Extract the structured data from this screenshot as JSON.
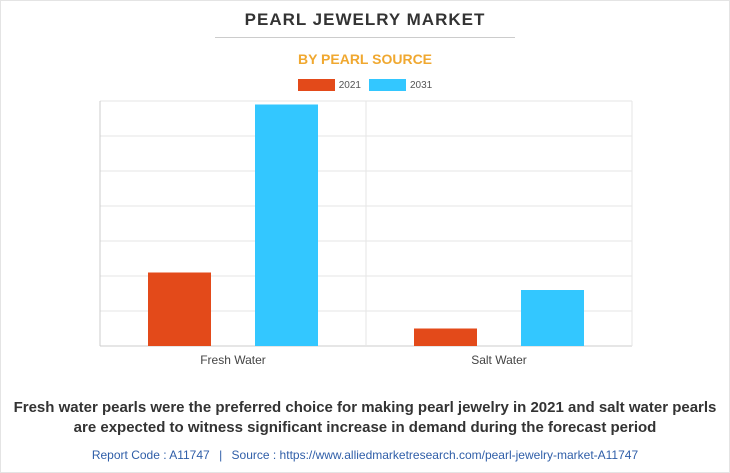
{
  "header": {
    "title": "PEARL JEWELRY MARKET",
    "subtitle": "BY PEARL SOURCE"
  },
  "chart_data": {
    "type": "bar",
    "categories": [
      "Fresh Water",
      "Salt Water"
    ],
    "series": [
      {
        "name": "2021",
        "color": "#e34a1a",
        "values": [
          21,
          5
        ]
      },
      {
        "name": "2031",
        "color": "#33c7ff",
        "values": [
          69,
          16
        ]
      }
    ],
    "ylim": [
      0,
      70
    ],
    "grid": true,
    "legend": "top-center",
    "xlabel": "",
    "ylabel": ""
  },
  "caption": "Fresh water pearls were the preferred choice for making pearl jewelry in 2021 and salt water pearls are expected to witness significant increase in demand during the forecast period",
  "footer": {
    "report_code": "Report Code : A11747",
    "separator": "|",
    "source": "Source : https://www.alliedmarketresearch.com/pearl-jewelry-market-A11747"
  }
}
